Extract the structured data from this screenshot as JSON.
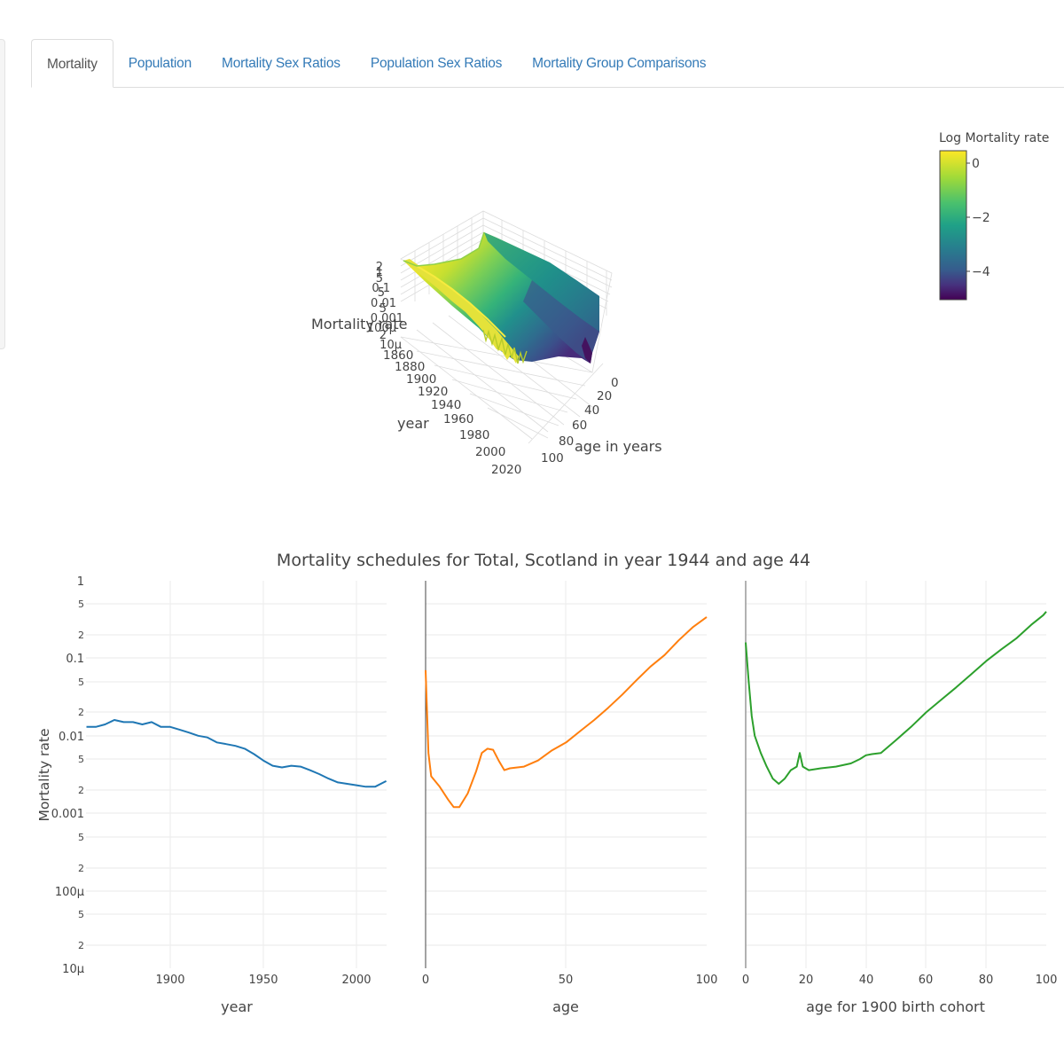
{
  "tabs": [
    {
      "label": "Mortality",
      "active": true
    },
    {
      "label": "Population",
      "active": false
    },
    {
      "label": "Mortality Sex Ratios",
      "active": false
    },
    {
      "label": "Population Sex Ratios",
      "active": false
    },
    {
      "label": "Mortality Group Comparisons",
      "active": false
    }
  ],
  "surface": {
    "colorbar": {
      "title": "Log Mortality rate",
      "ticks": [
        "0",
        "−2",
        "−4"
      ],
      "colorscale": "viridis",
      "colors": [
        "#fde725",
        "#7ad151",
        "#22a884",
        "#2a788e",
        "#414487",
        "#440154"
      ]
    },
    "z_axis": {
      "title": "Mortality rate",
      "ticks": [
        "2",
        "1",
        "5",
        "2",
        "0.1",
        "5",
        "2",
        "0.01",
        "5",
        "2",
        "0.001",
        "5",
        "2",
        "100µ",
        "5",
        "2",
        "10µ"
      ]
    },
    "year_axis": {
      "title": "year",
      "ticks": [
        "1860",
        "1880",
        "1900",
        "1920",
        "1940",
        "1960",
        "1980",
        "2000",
        "2020"
      ]
    },
    "age_axis": {
      "title": "age in years",
      "ticks": [
        "0",
        "20",
        "40",
        "60",
        "80",
        "100"
      ]
    }
  },
  "schedules": {
    "title": "Mortality schedules for Total, Scotland in year 1944 and age 44",
    "ylabel": "Mortality rate",
    "ytick_major": [
      "1",
      "0.1",
      "0.01",
      "0.001",
      "100µ",
      "10µ"
    ],
    "ytick_minor": [
      "5",
      "2"
    ],
    "panels": [
      {
        "xlabel": "year",
        "xticks": [
          "1900",
          "1950",
          "2000"
        ],
        "color": "#1f77b4"
      },
      {
        "xlabel": "age",
        "xticks": [
          "0",
          "50",
          "100"
        ],
        "color": "#ff7f0e"
      },
      {
        "xlabel": "age for 1900 birth cohort",
        "xticks": [
          "0",
          "20",
          "40",
          "60",
          "80",
          "100"
        ],
        "color": "#2ca02c"
      }
    ]
  },
  "chart_data": [
    {
      "type": "surface",
      "title": "",
      "xlabel": "year",
      "ylabel": "age in years",
      "zlabel": "Mortality rate",
      "x_range": [
        1855,
        2020
      ],
      "y_range": [
        0,
        110
      ],
      "z_scale": "log",
      "colorbar_title": "Log Mortality rate",
      "colorbar_range": [
        -5,
        0.3
      ],
      "colorbar_ticks": [
        0,
        -2,
        -4
      ]
    },
    {
      "type": "line",
      "title": "Mortality schedules for Total, Scotland in year 1944 and age 44",
      "xlabel": "year",
      "ylabel": "Mortality rate",
      "yscale": "log",
      "ylim": [
        1e-05,
        1
      ],
      "x": [
        1855,
        1860,
        1865,
        1870,
        1875,
        1880,
        1885,
        1890,
        1895,
        1900,
        1905,
        1910,
        1915,
        1920,
        1925,
        1930,
        1935,
        1940,
        1945,
        1950,
        1955,
        1960,
        1965,
        1970,
        1975,
        1980,
        1985,
        1990,
        1995,
        2000,
        2005,
        2010,
        2016
      ],
      "series": [
        {
          "name": "age 44",
          "values": [
            0.013,
            0.013,
            0.014,
            0.016,
            0.015,
            0.015,
            0.014,
            0.015,
            0.013,
            0.013,
            0.012,
            0.011,
            0.01,
            0.0095,
            0.0082,
            0.0078,
            0.0074,
            0.0068,
            0.0058,
            0.0048,
            0.0041,
            0.0039,
            0.0041,
            0.004,
            0.0036,
            0.0032,
            0.0028,
            0.0025,
            0.0024,
            0.0023,
            0.0022,
            0.0022,
            0.0026
          ]
        }
      ]
    },
    {
      "type": "line",
      "title": "",
      "xlabel": "age",
      "ylabel": "Mortality rate",
      "yscale": "log",
      "ylim": [
        1e-05,
        1
      ],
      "x": [
        0,
        1,
        2,
        5,
        8,
        10,
        12,
        15,
        18,
        20,
        22,
        24,
        26,
        28,
        30,
        35,
        40,
        45,
        50,
        55,
        60,
        65,
        70,
        75,
        80,
        85,
        90,
        95,
        100
      ],
      "series": [
        {
          "name": "year 1944",
          "values": [
            0.07,
            0.006,
            0.003,
            0.0022,
            0.0015,
            0.0012,
            0.0012,
            0.0018,
            0.0035,
            0.006,
            0.0068,
            0.0066,
            0.0048,
            0.0036,
            0.0038,
            0.004,
            0.0048,
            0.0065,
            0.0082,
            0.0115,
            0.016,
            0.023,
            0.034,
            0.052,
            0.078,
            0.11,
            0.17,
            0.25,
            0.34
          ]
        }
      ]
    },
    {
      "type": "line",
      "title": "",
      "xlabel": "age for 1900 birth cohort",
      "ylabel": "Mortality rate",
      "yscale": "log",
      "ylim": [
        1e-05,
        1
      ],
      "x": [
        0,
        1,
        2,
        3,
        5,
        7,
        9,
        11,
        13,
        15,
        17,
        18,
        19,
        21,
        25,
        30,
        35,
        38,
        40,
        42,
        45,
        50,
        55,
        60,
        65,
        70,
        75,
        80,
        85,
        90,
        95,
        99,
        100
      ],
      "series": [
        {
          "name": "1900 cohort",
          "values": [
            0.16,
            0.05,
            0.018,
            0.01,
            0.006,
            0.004,
            0.0028,
            0.0024,
            0.0028,
            0.0036,
            0.004,
            0.006,
            0.004,
            0.0036,
            0.0038,
            0.004,
            0.0044,
            0.005,
            0.0056,
            0.0058,
            0.006,
            0.0088,
            0.013,
            0.02,
            0.029,
            0.042,
            0.062,
            0.092,
            0.13,
            0.18,
            0.27,
            0.36,
            0.4
          ]
        }
      ]
    }
  ]
}
